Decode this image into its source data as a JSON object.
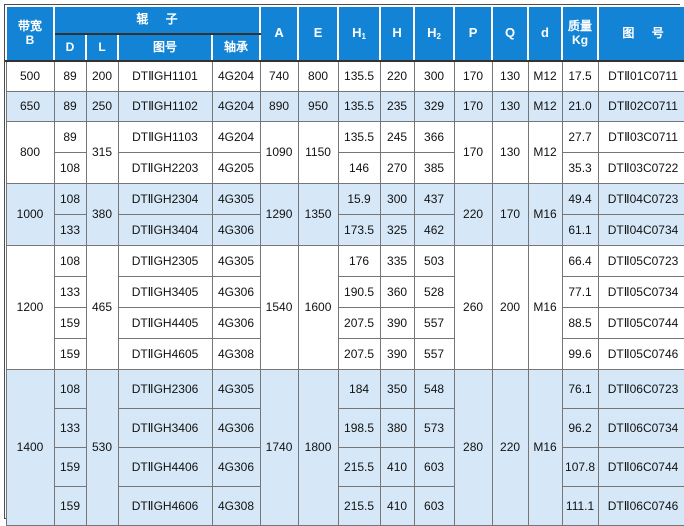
{
  "colors": {
    "header_bg": "#1384d5",
    "header_fg": "#ffffff",
    "row_shade": "#d6e8f7",
    "row_plain": "#ffffff",
    "grid": "#767676"
  },
  "header": {
    "bandwidth_line1": "带宽",
    "bandwidth_line2": "B",
    "roller_group": "辊 子",
    "d": "D",
    "l": "L",
    "roller_fig": "图号",
    "bearing": "轴承",
    "a": "A",
    "e": "E",
    "h1_base": "H",
    "h1_sub": "1",
    "h": "H",
    "h2_base": "H",
    "h2_sub": "2",
    "p": "P",
    "q": "Q",
    "thread": "d",
    "mass_line1": "质量",
    "mass_line2": "Kg",
    "fig": "图 号"
  },
  "table": {
    "groups": [
      {
        "b": "500",
        "l": "200",
        "a": "740",
        "e": "800",
        "p": "170",
        "q": "130",
        "thread": "M12",
        "shaded": false,
        "rows": [
          {
            "d": "89",
            "roller": "DTⅡGH1101",
            "bearing": "4G204",
            "h1": "135.5",
            "h": "220",
            "h2": "300",
            "kg": "17.5",
            "fig": "DTⅡ01C0711"
          }
        ]
      },
      {
        "b": "650",
        "l": "250",
        "a": "890",
        "e": "950",
        "p": "170",
        "q": "130",
        "thread": "M12",
        "shaded": true,
        "rows": [
          {
            "d": "89",
            "roller": "DTⅡGH1102",
            "bearing": "4G204",
            "h1": "135.5",
            "h": "235",
            "h2": "329",
            "kg": "21.0",
            "fig": "DTⅡ02C0711"
          }
        ]
      },
      {
        "b": "800",
        "l": "315",
        "a": "1090",
        "e": "1150",
        "p": "170",
        "q": "130",
        "thread": "M12",
        "shaded": false,
        "rows": [
          {
            "d": "89",
            "roller": "DTⅡGH1103",
            "bearing": "4G204",
            "h1": "135.5",
            "h": "245",
            "h2": "366",
            "kg": "27.7",
            "fig": "DTⅡ03C0711"
          },
          {
            "d": "108",
            "roller": "DTⅡGH2203",
            "bearing": "4G205",
            "h1": "146",
            "h": "270",
            "h2": "385",
            "kg": "35.3",
            "fig": "DTⅡ03C0722"
          }
        ]
      },
      {
        "b": "1000",
        "l": "380",
        "a": "1290",
        "e": "1350",
        "p": "220",
        "q": "170",
        "thread": "M16",
        "shaded": true,
        "rows": [
          {
            "d": "108",
            "roller": "DTⅡGH2304",
            "bearing": "4G305",
            "h1": "15.9",
            "h": "300",
            "h2": "437",
            "kg": "49.4",
            "fig": "DTⅡ04C0723"
          },
          {
            "d": "133",
            "roller": "DTⅡGH3404",
            "bearing": "4G306",
            "h1": "173.5",
            "h": "325",
            "h2": "462",
            "kg": "61.1",
            "fig": "DTⅡ04C0734"
          }
        ]
      },
      {
        "b": "1200",
        "l": "465",
        "a": "1540",
        "e": "1600",
        "p": "260",
        "q": "200",
        "thread": "M16",
        "shaded": false,
        "rows": [
          {
            "d": "108",
            "roller": "DTⅡGH2305",
            "bearing": "4G305",
            "h1": "176",
            "h": "335",
            "h2": "503",
            "kg": "66.4",
            "fig": "DTⅡ05C0723"
          },
          {
            "d": "133",
            "roller": "DTⅡGH3405",
            "bearing": "4G306",
            "h1": "190.5",
            "h": "360",
            "h2": "528",
            "kg": "77.1",
            "fig": "DTⅡ05C0734"
          },
          {
            "d": "159",
            "roller": "DTⅡGH4405",
            "bearing": "4G306",
            "h1": "207.5",
            "h": "390",
            "h2": "557",
            "kg": "88.5",
            "fig": "DTⅡ05C0744"
          },
          {
            "d": "159",
            "roller": "DTⅡGH4605",
            "bearing": "4G308",
            "h1": "207.5",
            "h": "390",
            "h2": "557",
            "kg": "99.6",
            "fig": "DTⅡ05C0746"
          }
        ]
      },
      {
        "b": "1400",
        "l": "530",
        "a": "1740",
        "e": "1800",
        "p": "280",
        "q": "220",
        "thread": "M16",
        "shaded": true,
        "rows": [
          {
            "d": "108",
            "roller": "DTⅡGH2306",
            "bearing": "4G305",
            "h1": "184",
            "h": "350",
            "h2": "548",
            "kg": "76.1",
            "fig": "DTⅡ06C0723"
          },
          {
            "d": "133",
            "roller": "DTⅡGH3406",
            "bearing": "4G306",
            "h1": "198.5",
            "h": "380",
            "h2": "573",
            "kg": "96.2",
            "fig": "DTⅡ06C0734"
          },
          {
            "d": "159",
            "roller": "DTⅡGH4406",
            "bearing": "4G306",
            "h1": "215.5",
            "h": "410",
            "h2": "603",
            "kg": "107.8",
            "fig": "DTⅡ06C0744"
          },
          {
            "d": "159",
            "roller": "DTⅡGH4606",
            "bearing": "4G308",
            "h1": "215.5",
            "h": "410",
            "h2": "603",
            "kg": "111.1",
            "fig": "DTⅡ06C0746"
          }
        ]
      }
    ]
  }
}
